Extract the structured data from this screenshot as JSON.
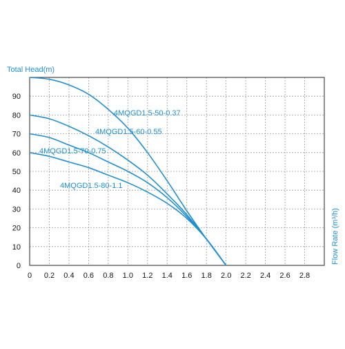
{
  "colors": {
    "curve": "#1f8fd0",
    "label": "#1b8fd6",
    "axis_title": "#1b8fd6",
    "grid": "#9a9a9a",
    "frame": "#444444",
    "tick_text": "#111111"
  },
  "chart_data": {
    "type": "line",
    "title": "",
    "ylabel": "Total Head(m)",
    "xlabel": "Flow Rate (m³/h)",
    "xlim": [
      0,
      3.0
    ],
    "ylim": [
      0,
      100
    ],
    "x_ticks": [
      "0",
      "0.2",
      "0.4",
      "0.6",
      "0.8",
      "1.0",
      "1.2",
      "1.4",
      "1.6",
      "1.8",
      "2.0",
      "2.2",
      "2.4",
      "2.6",
      "2.8"
    ],
    "y_ticks": [
      "0",
      "10",
      "20",
      "30",
      "40",
      "50",
      "60",
      "70",
      "80",
      "90"
    ],
    "grid": true,
    "series": [
      {
        "name": "4MQGD1.5-50-0.37",
        "x": [
          0,
          0.2,
          0.4,
          0.6,
          0.8,
          1.0,
          1.2,
          1.4,
          1.6,
          1.8,
          2.0
        ],
        "y": [
          100,
          99,
          96,
          91,
          83,
          73,
          60,
          45,
          29,
          14,
          0
        ]
      },
      {
        "name": "4MQGD1.5-60-0.55",
        "x": [
          0,
          0.2,
          0.4,
          0.6,
          0.8,
          1.0,
          1.2,
          1.4,
          1.6,
          1.8,
          2.0
        ],
        "y": [
          80,
          78,
          74,
          69,
          63,
          56,
          48,
          38,
          27,
          14,
          0
        ]
      },
      {
        "name": "4MQGD1.5-70-0.75",
        "x": [
          0,
          0.2,
          0.4,
          0.6,
          0.8,
          1.0,
          1.2,
          1.4,
          1.6,
          1.8,
          2.0
        ],
        "y": [
          70,
          68,
          64,
          60,
          55,
          50,
          44,
          36,
          26,
          14,
          0
        ]
      },
      {
        "name": "4MQGD1.5-80-1.1",
        "x": [
          0,
          0.2,
          0.4,
          0.6,
          0.8,
          1.0,
          1.2,
          1.4,
          1.6,
          1.8,
          2.0
        ],
        "y": [
          60,
          58,
          55,
          52,
          48,
          44,
          39,
          33,
          25,
          14,
          0
        ]
      }
    ]
  }
}
